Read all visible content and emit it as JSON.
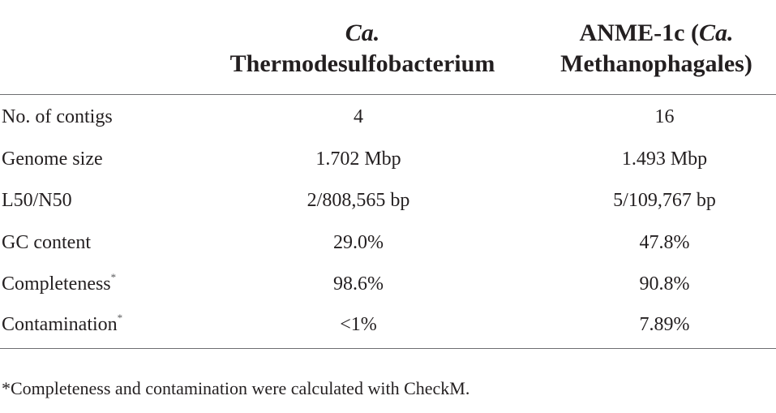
{
  "table": {
    "header": {
      "col2_line1": "Ca.",
      "col2_line2": "Thermodesulfobacterium",
      "col3_line1_a": "ANME-1c (",
      "col3_line1_b": "Ca.",
      "col3_line2": "Methanophagales)"
    },
    "rows": [
      {
        "label": "No. of contigs",
        "mark": "",
        "thermo": "4",
        "anme": "16"
      },
      {
        "label": "Genome size",
        "mark": "",
        "thermo": "1.702 Mbp",
        "anme": "1.493 Mbp"
      },
      {
        "label": "L50/N50",
        "mark": "",
        "thermo": "2/808,565 bp",
        "anme": "5/109,767 bp"
      },
      {
        "label": "GC content",
        "mark": "",
        "thermo": "29.0%",
        "anme": "47.8%"
      },
      {
        "label": "Completeness",
        "mark": "*",
        "thermo": "98.6%",
        "anme": "90.8%"
      },
      {
        "label": "Contamination",
        "mark": "*",
        "thermo": "<1%",
        "anme": "7.89%"
      }
    ]
  },
  "footnote": "*Completeness and contamination were calculated with CheckM."
}
